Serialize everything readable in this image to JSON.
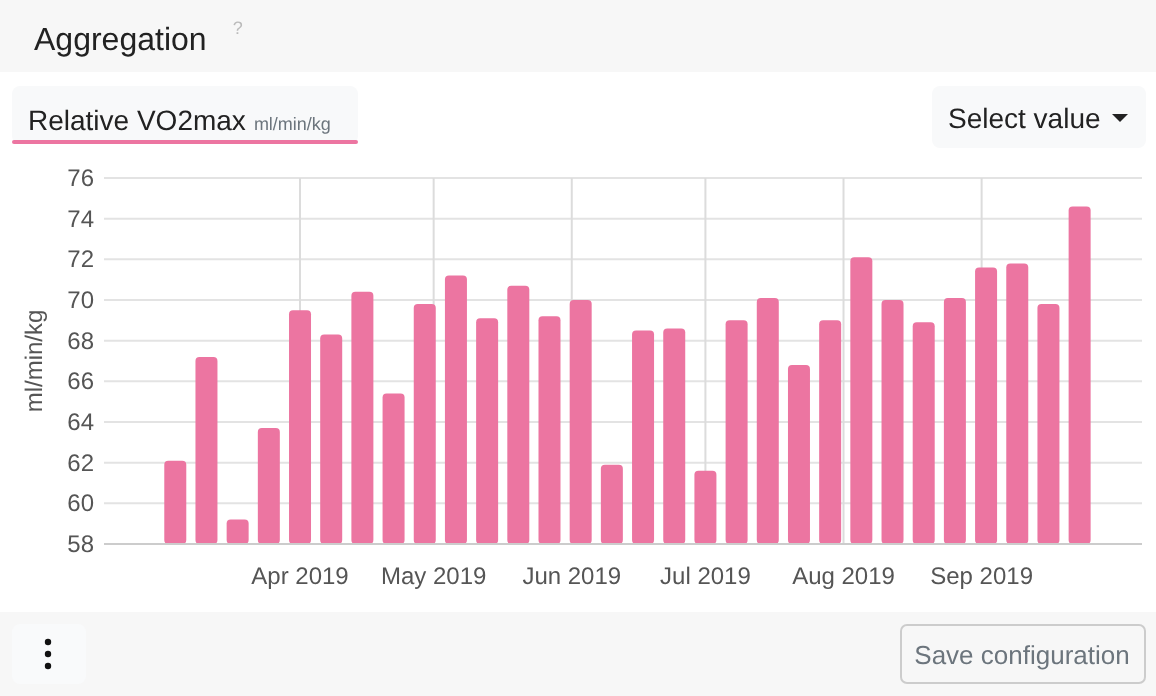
{
  "chart_data": {
    "type": "bar",
    "title": "Aggregation",
    "subtitle": "Relative VO2max",
    "ylabel": "ml/min/kg",
    "annotations": [
      "?",
      "ml/min/kg",
      "Select value",
      "Save configuration"
    ],
    "x": [
      "2019-03-04",
      "2019-03-11",
      "2019-03-18",
      "2019-03-25",
      "2019-04-01",
      "2019-04-08",
      "2019-04-15",
      "2019-04-22",
      "2019-04-29",
      "2019-05-06",
      "2019-05-13",
      "2019-05-20",
      "2019-05-27",
      "2019-06-03",
      "2019-06-10",
      "2019-06-17",
      "2019-06-24",
      "2019-07-01",
      "2019-07-08",
      "2019-07-15",
      "2019-07-22",
      "2019-07-29",
      "2019-08-05",
      "2019-08-12",
      "2019-08-19",
      "2019-08-26",
      "2019-09-02",
      "2019-09-09",
      "2019-09-16",
      "2019-09-23"
    ],
    "values": [
      62.1,
      67.2,
      59.2,
      63.7,
      69.5,
      68.3,
      70.4,
      65.4,
      69.8,
      71.2,
      69.1,
      70.7,
      69.2,
      70.0,
      61.9,
      68.5,
      68.6,
      61.6,
      69.0,
      70.1,
      66.8,
      69.0,
      72.1,
      70.0,
      68.9,
      70.1,
      71.6,
      71.8,
      69.8,
      74.6
    ],
    "color": "#ec75a1",
    "xlim": [
      "2019-02-16",
      "2019-10-07"
    ],
    "xticks": [
      {
        "value": "2019-04-01",
        "label": "Apr 2019"
      },
      {
        "value": "2019-05-01",
        "label": "May 2019"
      },
      {
        "value": "2019-06-01",
        "label": "Jun 2019"
      },
      {
        "value": "2019-07-01",
        "label": "Jul 2019"
      },
      {
        "value": "2019-08-01",
        "label": "Aug 2019"
      },
      {
        "value": "2019-09-01",
        "label": "Sep 2019"
      }
    ],
    "ylim": [
      58,
      76
    ],
    "yticks": [
      58,
      60,
      62,
      64,
      66,
      68,
      70,
      72,
      74,
      76
    ],
    "grid": true
  }
}
